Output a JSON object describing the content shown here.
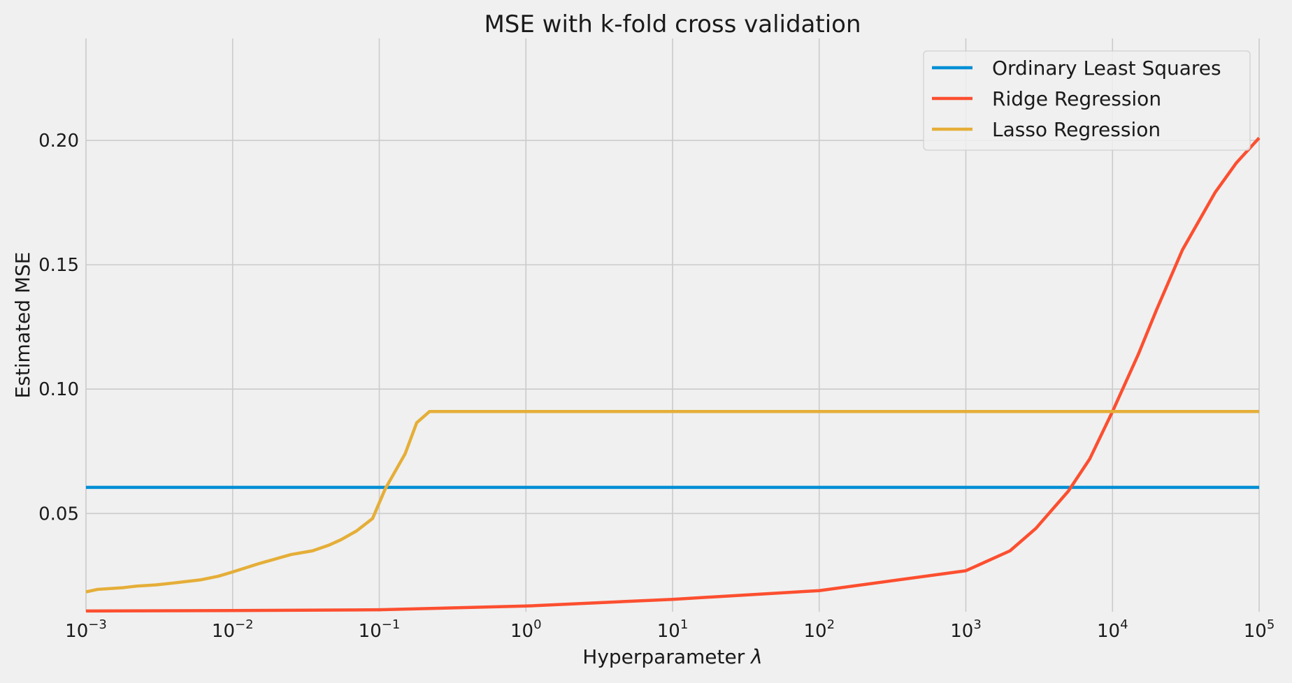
{
  "chart_data": {
    "type": "line",
    "title": "MSE with k-fold cross validation",
    "xlabel": "Hyperparameter",
    "xlabel_symbol": "λ",
    "ylabel": "Estimated MSE",
    "xscale": "log",
    "xlim": [
      0.001,
      100000
    ],
    "ylim": [
      0.0105,
      0.241
    ],
    "grid": true,
    "legend_position": "top-right",
    "x_ticks": [
      {
        "base": "10",
        "exp": "−3",
        "value": 0.001
      },
      {
        "base": "10",
        "exp": "−2",
        "value": 0.01
      },
      {
        "base": "10",
        "exp": "−1",
        "value": 0.1
      },
      {
        "base": "10",
        "exp": "0",
        "value": 1
      },
      {
        "base": "10",
        "exp": "1",
        "value": 10
      },
      {
        "base": "10",
        "exp": "2",
        "value": 100
      },
      {
        "base": "10",
        "exp": "3",
        "value": 1000
      },
      {
        "base": "10",
        "exp": "4",
        "value": 10000
      },
      {
        "base": "10",
        "exp": "5",
        "value": 100000
      }
    ],
    "y_ticks": [
      {
        "label": "0.05",
        "value": 0.05
      },
      {
        "label": "0.10",
        "value": 0.1
      },
      {
        "label": "0.15",
        "value": 0.15
      },
      {
        "label": "0.20",
        "value": 0.2
      }
    ],
    "series": [
      {
        "name": "Ordinary Least Squares",
        "color": "#008fd5",
        "x": [
          0.001,
          100000
        ],
        "y": [
          0.0605,
          0.0605
        ]
      },
      {
        "name": "Ridge Regression",
        "color": "#fc4f30",
        "x": [
          0.001,
          0.01,
          0.1,
          1,
          10,
          100,
          1000,
          2000,
          3000,
          5000,
          7000,
          10000,
          15000,
          20000,
          30000,
          50000,
          70000,
          100000
        ],
        "y": [
          0.0108,
          0.011,
          0.0113,
          0.0128,
          0.0155,
          0.019,
          0.027,
          0.035,
          0.044,
          0.059,
          0.072,
          0.091,
          0.114,
          0.132,
          0.156,
          0.179,
          0.191,
          0.201
        ]
      },
      {
        "name": "Lasso Regression",
        "color": "#e5ae38",
        "x": [
          0.001,
          0.0012,
          0.0018,
          0.0022,
          0.003,
          0.004,
          0.006,
          0.008,
          0.01,
          0.015,
          0.025,
          0.035,
          0.045,
          0.055,
          0.07,
          0.09,
          0.11,
          0.15,
          0.18,
          0.22,
          0.5,
          1,
          10,
          100,
          1000,
          10000,
          100000
        ],
        "y": [
          0.0185,
          0.0195,
          0.0202,
          0.0208,
          0.0213,
          0.0221,
          0.0233,
          0.0248,
          0.0265,
          0.0298,
          0.0335,
          0.035,
          0.0372,
          0.0395,
          0.043,
          0.048,
          0.06,
          0.074,
          0.0865,
          0.091,
          0.091,
          0.091,
          0.091,
          0.091,
          0.091,
          0.091,
          0.091
        ]
      }
    ]
  }
}
